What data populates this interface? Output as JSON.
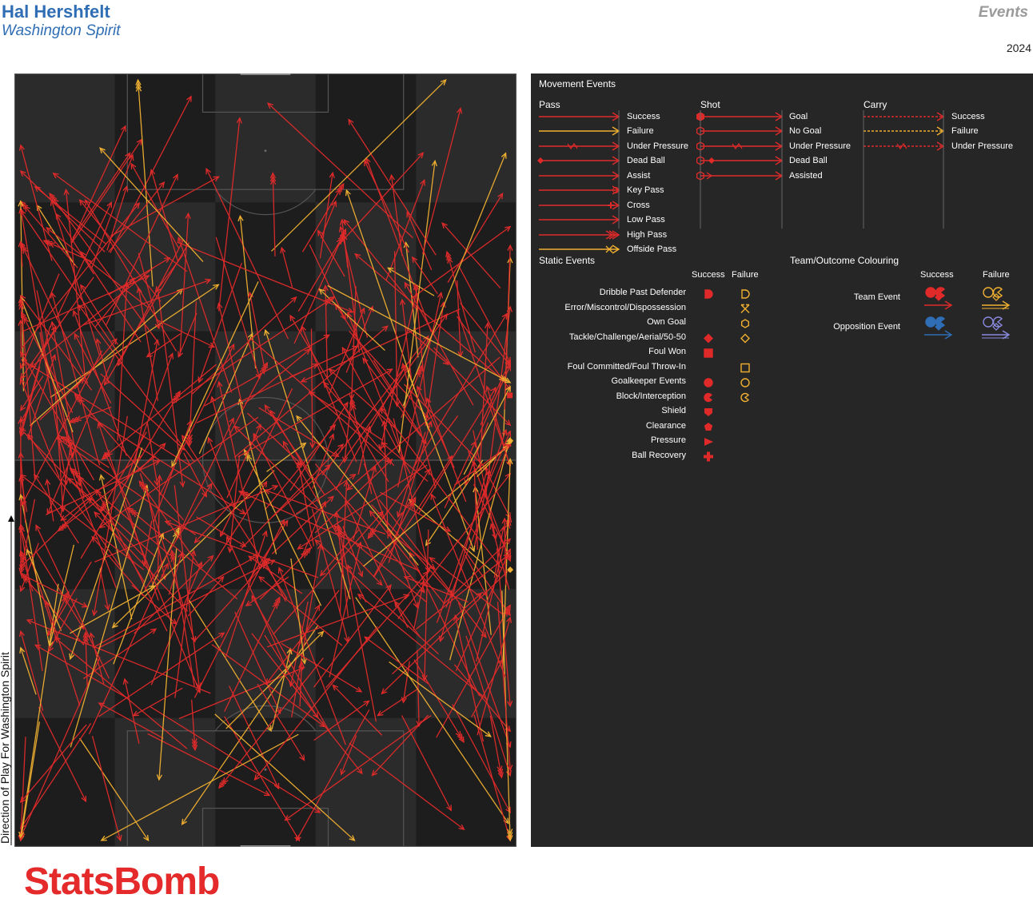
{
  "header": {
    "player": "Hal Hershfelt",
    "team": "Washington Spirit",
    "section": "Events",
    "season": "2024"
  },
  "direction_label": "Direction of Play For Washington Spirit",
  "brand": "StatsBomb",
  "colors": {
    "success": "#e02a2a",
    "failure": "#f0b030",
    "pitch_dark": "#1d1d1d",
    "pitch_light": "#2b2b2b",
    "legend_bg": "#262626",
    "opposition_success": "#2f6db5",
    "opposition_failure": "#8a8ae0"
  },
  "legend": {
    "movement_title": "Movement Events",
    "pass_title": "Pass",
    "shot_title": "Shot",
    "carry_title": "Carry",
    "pass_items": [
      "Success",
      "Failure",
      "Under Pressure",
      "Dead Ball",
      "Assist",
      "Key Pass",
      "Cross",
      "Low Pass",
      "High Pass",
      "Offside Pass"
    ],
    "shot_items": [
      "Goal",
      "No Goal",
      "Under Pressure",
      "Dead Ball",
      "Assisted"
    ],
    "carry_items": [
      "Success",
      "Failure",
      "Under Pressure"
    ],
    "static_title": "Static Events",
    "success_header": "Success",
    "failure_header": "Failure",
    "static_items": [
      {
        "label": "Dribble Past Defender",
        "success": true,
        "failure": true
      },
      {
        "label": "Error/Miscontrol/Dispossession",
        "success": false,
        "failure": true
      },
      {
        "label": "Own Goal",
        "success": false,
        "failure": true
      },
      {
        "label": "Tackle/Challenge/Aerial/50-50",
        "success": true,
        "failure": true
      },
      {
        "label": "Foul Won",
        "success": true,
        "failure": false
      },
      {
        "label": "Foul Committed/Foul Throw-In",
        "success": false,
        "failure": true
      },
      {
        "label": "Goalkeeper Events",
        "success": true,
        "failure": true
      },
      {
        "label": "Block/Interception",
        "success": true,
        "failure": true
      },
      {
        "label": "Shield",
        "success": true,
        "failure": false
      },
      {
        "label": "Clearance",
        "success": true,
        "failure": false
      },
      {
        "label": "Pressure",
        "success": true,
        "failure": false
      },
      {
        "label": "Ball Recovery",
        "success": true,
        "failure": false
      }
    ],
    "team_title": "Team/Outcome Colouring",
    "team_items": [
      "Team Event",
      "Opposition Event"
    ]
  },
  "chart_data": {
    "type": "scatter",
    "pitch": {
      "length": 120,
      "width": 80,
      "orientation": "vertical"
    },
    "seed": 2024,
    "approx_pass_count": 480,
    "approx_failure_share": 0.16,
    "static_events": [
      {
        "type": "Foul Won",
        "outcome": "success",
        "x": 70,
        "y": 79
      },
      {
        "type": "Tackle/Challenge/Aerial/50-50",
        "outcome": "failure",
        "x": 63,
        "y": 79
      },
      {
        "type": "Tackle/Challenge/Aerial/50-50",
        "outcome": "failure",
        "x": 43,
        "y": 79
      }
    ]
  }
}
